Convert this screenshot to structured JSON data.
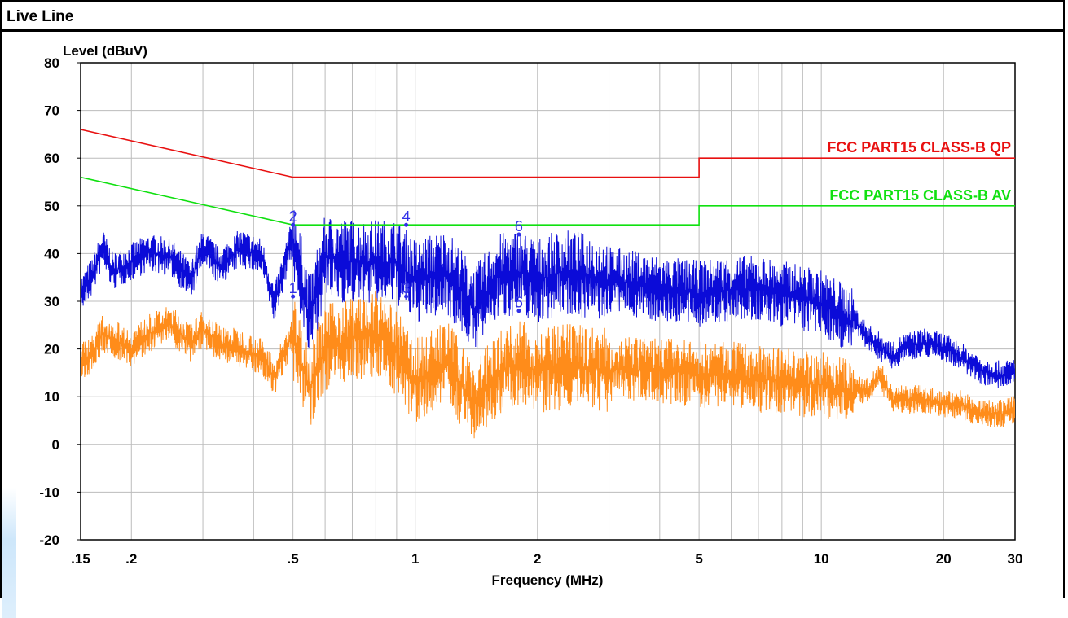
{
  "window": {
    "title": "Live Line"
  },
  "colors": {
    "qp_limit": "#e81010",
    "av_limit": "#10e010",
    "peak_trace": "#0b0bd8",
    "average_trace": "#ff8c1a",
    "grid": "#bcbcbc",
    "marker": "#3030e8"
  },
  "chart_data": {
    "type": "line",
    "x_scale": "log",
    "xlim": [
      0.15,
      30
    ],
    "ylim": [
      -20,
      80
    ],
    "grid": true,
    "ylabel": "Level (dBuV)",
    "xlabel": "Frequency (MHz)",
    "x_ticks": [
      {
        "value": 0.15,
        "label": ".15"
      },
      {
        "value": 0.2,
        "label": ".2"
      },
      {
        "value": 0.5,
        "label": ".5"
      },
      {
        "value": 1,
        "label": "1"
      },
      {
        "value": 2,
        "label": "2"
      },
      {
        "value": 5,
        "label": "5"
      },
      {
        "value": 10,
        "label": "10"
      },
      {
        "value": 20,
        "label": "20"
      },
      {
        "value": 30,
        "label": "30"
      }
    ],
    "y_ticks": [
      80,
      70,
      60,
      50,
      40,
      30,
      20,
      10,
      0,
      -10,
      -20
    ],
    "limits": [
      {
        "name": "FCC PART15 CLASS-B QP",
        "color": "#e81010",
        "points": [
          [
            0.15,
            66
          ],
          [
            0.5,
            56
          ],
          [
            5,
            56
          ],
          [
            5,
            60
          ],
          [
            30,
            60
          ]
        ]
      },
      {
        "name": "FCC PART15 CLASS-B AV",
        "color": "#10e010",
        "points": [
          [
            0.15,
            56
          ],
          [
            0.5,
            46
          ],
          [
            5,
            46
          ],
          [
            5,
            50
          ],
          [
            30,
            50
          ]
        ]
      }
    ],
    "series": [
      {
        "color": "#0b0bd8",
        "points": [
          [
            0.15,
            32
          ],
          [
            0.16,
            36
          ],
          [
            0.17,
            42
          ],
          [
            0.18,
            37
          ],
          [
            0.2,
            39
          ],
          [
            0.22,
            41
          ],
          [
            0.25,
            40
          ],
          [
            0.28,
            35
          ],
          [
            0.3,
            42
          ],
          [
            0.33,
            38
          ],
          [
            0.37,
            42
          ],
          [
            0.42,
            40
          ],
          [
            0.45,
            30
          ],
          [
            0.5,
            45
          ],
          [
            0.55,
            28
          ],
          [
            0.6,
            41
          ],
          [
            0.7,
            40
          ],
          [
            0.8,
            40
          ],
          [
            0.9,
            40
          ],
          [
            1.0,
            36
          ],
          [
            1.2,
            38
          ],
          [
            1.4,
            30
          ],
          [
            1.6,
            37
          ],
          [
            1.8,
            38
          ],
          [
            2.0,
            36
          ],
          [
            2.3,
            38
          ],
          [
            2.7,
            37
          ],
          [
            3.0,
            36
          ],
          [
            3.5,
            35
          ],
          [
            4.0,
            34
          ],
          [
            5,
            33
          ],
          [
            6,
            34
          ],
          [
            7,
            34
          ],
          [
            8,
            33
          ],
          [
            9,
            32
          ],
          [
            10,
            31
          ],
          [
            11,
            29
          ],
          [
            12,
            27
          ],
          [
            13,
            23
          ],
          [
            14,
            21
          ],
          [
            15,
            19
          ],
          [
            16,
            21
          ],
          [
            18,
            22
          ],
          [
            20,
            21
          ],
          [
            22,
            19
          ],
          [
            25,
            16
          ],
          [
            28,
            15
          ],
          [
            30,
            16
          ]
        ]
      },
      {
        "color": "#ff8c1a",
        "points": [
          [
            0.15,
            18
          ],
          [
            0.16,
            20
          ],
          [
            0.17,
            24
          ],
          [
            0.18,
            23
          ],
          [
            0.2,
            21
          ],
          [
            0.22,
            24
          ],
          [
            0.25,
            26
          ],
          [
            0.28,
            22
          ],
          [
            0.3,
            25
          ],
          [
            0.33,
            22
          ],
          [
            0.37,
            21
          ],
          [
            0.42,
            19
          ],
          [
            0.45,
            15
          ],
          [
            0.5,
            24
          ],
          [
            0.55,
            14
          ],
          [
            0.6,
            22
          ],
          [
            0.7,
            24
          ],
          [
            0.8,
            25
          ],
          [
            0.9,
            21
          ],
          [
            1.0,
            15
          ],
          [
            1.2,
            19
          ],
          [
            1.4,
            10
          ],
          [
            1.6,
            17
          ],
          [
            1.8,
            19
          ],
          [
            2.0,
            17
          ],
          [
            2.3,
            18
          ],
          [
            2.7,
            18
          ],
          [
            3.0,
            17
          ],
          [
            3.5,
            17
          ],
          [
            4.0,
            17
          ],
          [
            5,
            16
          ],
          [
            6,
            16
          ],
          [
            7,
            15
          ],
          [
            8,
            15
          ],
          [
            9,
            14
          ],
          [
            10,
            14
          ],
          [
            11,
            13
          ],
          [
            12,
            12
          ],
          [
            13,
            12
          ],
          [
            14,
            15
          ],
          [
            15,
            10
          ],
          [
            16,
            10
          ],
          [
            18,
            10
          ],
          [
            20,
            9
          ],
          [
            22,
            9
          ],
          [
            25,
            7
          ],
          [
            28,
            7
          ],
          [
            30,
            8
          ]
        ]
      }
    ],
    "markers": [
      {
        "label": "1",
        "x": 0.5,
        "y": 31
      },
      {
        "label": "2",
        "x": 0.5,
        "y": 46
      },
      {
        "label": "3",
        "x": 0.95,
        "y": 31
      },
      {
        "label": "4",
        "x": 0.95,
        "y": 46
      },
      {
        "label": "5",
        "x": 1.8,
        "y": 28
      },
      {
        "label": "6",
        "x": 1.8,
        "y": 44
      }
    ]
  }
}
